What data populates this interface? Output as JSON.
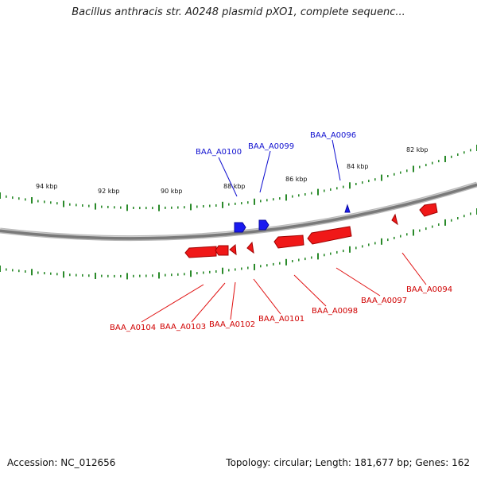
{
  "title": "Bacillus anthracis str. A0248 plasmid pXO1, complete sequenc...",
  "footer": {
    "accession": "Accession: NC_012656",
    "summary": "Topology: circular; Length: 181,677 bp; Genes: 162"
  },
  "colors": {
    "forward_strand": "#1010e0",
    "reverse_strand": "#e00000",
    "tick": "#2a8a2a",
    "backbone": "#8a8a8a"
  },
  "ticks": [
    {
      "label": "94 kbp"
    },
    {
      "label": "92 kbp"
    },
    {
      "label": "90 kbp"
    },
    {
      "label": "88 kbp"
    },
    {
      "label": "86 kbp"
    },
    {
      "label": "84 kbp"
    },
    {
      "label": "82 kbp"
    }
  ],
  "genes": {
    "forward": [
      {
        "label": "BAA_A0100"
      },
      {
        "label": "BAA_A0099"
      },
      {
        "label": "BAA_A0096"
      }
    ],
    "reverse": [
      {
        "label": "BAA_A0104"
      },
      {
        "label": "BAA_A0103"
      },
      {
        "label": "BAA_A0102"
      },
      {
        "label": "BAA_A0101"
      },
      {
        "label": "BAA_A0098"
      },
      {
        "label": "BAA_A0097"
      },
      {
        "label": "BAA_A0094"
      }
    ]
  }
}
